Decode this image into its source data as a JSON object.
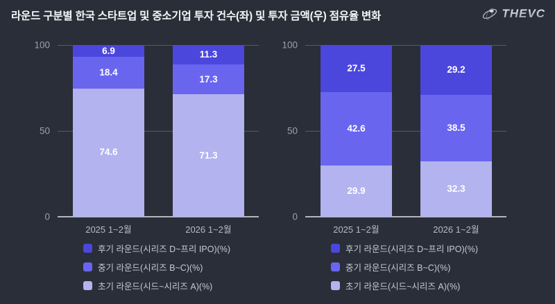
{
  "page": {
    "title": "라운드 구분별 한국 스타트업 및 중소기업 투자 건수(좌) 및 투자 금액(우) 점유율 변화",
    "brand": "THEVC",
    "colors": {
      "background": "#2a2e39",
      "grid_line": "#565b65",
      "zero_axis": "#b4b6bb",
      "title_text": "#f4f5f7",
      "tick_text": "#9aa0a9",
      "category_text": "#b6bac2",
      "legend_text": "#c6cad1",
      "value_label": "#ffffff"
    }
  },
  "chart_data": [
    {
      "type": "bar",
      "subtype": "stacked-percent",
      "side": "투자 건수(좌)",
      "categories": [
        "2025 1~2월",
        "2026 1~2월"
      ],
      "series": [
        {
          "name": "후기 라운드(시리즈 D~프리 IPO)(%)",
          "values": [
            6.9,
            11.3
          ],
          "color": "#4b47dd"
        },
        {
          "name": "중기 라운드(시리즈 B~C)(%)",
          "values": [
            18.4,
            17.3
          ],
          "color": "#6965ef"
        },
        {
          "name": "초기 라운드(시드~시리즈 A)(%)",
          "values": [
            74.6,
            71.3
          ],
          "color": "#b3b3f0"
        }
      ],
      "ylim": [
        0,
        100
      ],
      "yticks": [
        0,
        50,
        100
      ],
      "grid": true,
      "legend_position": "bottom-left"
    },
    {
      "type": "bar",
      "subtype": "stacked-percent",
      "side": "투자 금액(우)",
      "categories": [
        "2025 1~2월",
        "2026 1~2월"
      ],
      "series": [
        {
          "name": "후기 라운드(시리즈 D~프리 IPO)(%)",
          "values": [
            27.5,
            29.2
          ],
          "color": "#4b47dd"
        },
        {
          "name": "중기 라운드(시리즈 B~C)(%)",
          "values": [
            42.6,
            38.5
          ],
          "color": "#6965ef"
        },
        {
          "name": "초기 라운드(시드~시리즈 A)(%)",
          "values": [
            29.9,
            32.3
          ],
          "color": "#b3b3f0"
        }
      ],
      "ylim": [
        0,
        100
      ],
      "yticks": [
        0,
        50,
        100
      ],
      "grid": true,
      "legend_position": "bottom-left"
    }
  ]
}
